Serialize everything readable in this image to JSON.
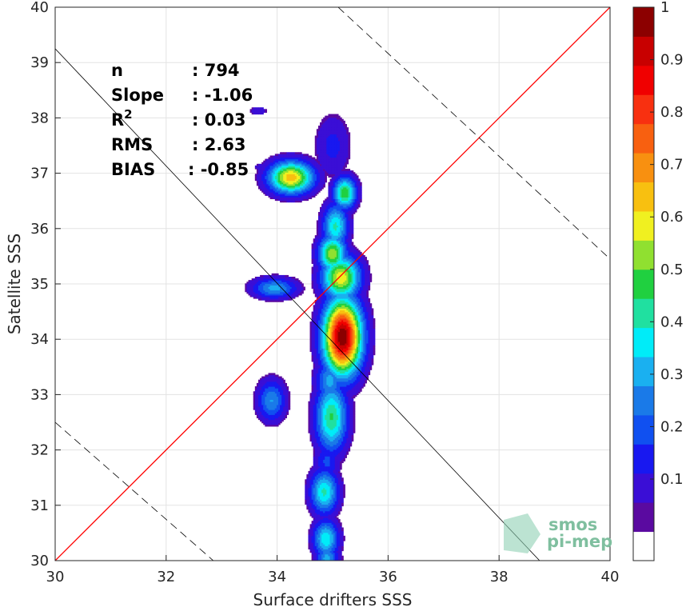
{
  "chart_data": {
    "type": "heatmap",
    "subtype": "filled-contour density",
    "xlabel": "Surface drifters SSS",
    "ylabel": "Satellite SSS",
    "xlim": [
      30,
      40
    ],
    "ylim": [
      30,
      40
    ],
    "xticks": [
      "30",
      "32",
      "34",
      "36",
      "38",
      "40"
    ],
    "yticks": [
      "30",
      "31",
      "32",
      "33",
      "34",
      "35",
      "36",
      "37",
      "38",
      "39",
      "40"
    ],
    "grid": true,
    "colorbar": {
      "range": [
        0,
        1
      ],
      "ticks": [
        "0.1",
        "0.2",
        "0.3",
        "0.4",
        "0.5",
        "0.6",
        "0.7",
        "0.8",
        "0.9",
        "1"
      ],
      "colors": [
        "#ffffff",
        "#5a0aa0",
        "#3a0ed6",
        "#1818f0",
        "#1050f0",
        "#1a7ae8",
        "#1ab0f0",
        "#00ecf8",
        "#20e0a0",
        "#20d040",
        "#90e030",
        "#f0f020",
        "#f8c010",
        "#f89010",
        "#f86010",
        "#f83010",
        "#f00000",
        "#c80000",
        "#8c0000"
      ]
    },
    "stats": [
      {
        "label": "n",
        "value": ": 794"
      },
      {
        "label": "Slope",
        "value": ": -1.06"
      },
      {
        "label": "R",
        "sup": "2",
        "value": ": 0.03"
      },
      {
        "label": "RMS",
        "value": ": 2.63"
      },
      {
        "label": "BIAS",
        "value": ": -0.85"
      }
    ],
    "lines": [
      {
        "name": "one-to-one",
        "color": "#ff0000",
        "style": "solid",
        "points": [
          [
            30,
            30
          ],
          [
            40,
            40
          ]
        ]
      },
      {
        "name": "regression",
        "color": "#000000",
        "style": "solid",
        "points": [
          [
            30,
            39.25
          ],
          [
            38.73,
            30
          ]
        ]
      },
      {
        "name": "upper-bound",
        "color": "#000000",
        "style": "dashed",
        "points": [
          [
            35.1,
            40
          ],
          [
            40,
            35.45
          ]
        ]
      },
      {
        "name": "lower-bound",
        "color": "#000000",
        "style": "dashed",
        "points": [
          [
            30,
            32.5
          ],
          [
            32.85,
            30
          ]
        ]
      }
    ],
    "density_blobs": [
      {
        "x": 34.25,
        "y": 36.93,
        "rx": 0.35,
        "ry": 0.25,
        "peak": 0.65
      },
      {
        "x": 33.95,
        "y": 34.93,
        "rx": 0.35,
        "ry": 0.16,
        "peak": 0.3
      },
      {
        "x": 33.9,
        "y": 32.9,
        "rx": 0.22,
        "ry": 0.32,
        "peak": 0.28
      },
      {
        "x": 33.65,
        "y": 38.13,
        "rx": 0.15,
        "ry": 0.07,
        "peak": 0.1
      },
      {
        "x": 33.7,
        "y": 37.12,
        "rx": 0.1,
        "ry": 0.05,
        "peak": 0.1
      },
      {
        "x": 35.18,
        "y": 34.05,
        "rx": 0.3,
        "ry": 0.6,
        "peak": 1.0
      },
      {
        "x": 35.15,
        "y": 35.12,
        "rx": 0.3,
        "ry": 0.35,
        "peak": 0.6
      },
      {
        "x": 35.0,
        "y": 35.55,
        "rx": 0.22,
        "ry": 0.3,
        "peak": 0.55
      },
      {
        "x": 35.05,
        "y": 36.05,
        "rx": 0.2,
        "ry": 0.35,
        "peak": 0.4
      },
      {
        "x": 35.22,
        "y": 36.65,
        "rx": 0.18,
        "ry": 0.25,
        "peak": 0.5
      },
      {
        "x": 35.0,
        "y": 37.5,
        "rx": 0.28,
        "ry": 0.5,
        "peak": 0.13
      },
      {
        "x": 34.98,
        "y": 32.6,
        "rx": 0.25,
        "ry": 0.55,
        "peak": 0.45
      },
      {
        "x": 34.95,
        "y": 33.25,
        "rx": 0.22,
        "ry": 0.35,
        "peak": 0.3
      },
      {
        "x": 34.85,
        "y": 31.25,
        "rx": 0.22,
        "ry": 0.35,
        "peak": 0.4
      },
      {
        "x": 34.9,
        "y": 31.8,
        "rx": 0.2,
        "ry": 0.3,
        "peak": 0.18
      },
      {
        "x": 34.88,
        "y": 30.4,
        "rx": 0.2,
        "ry": 0.3,
        "peak": 0.38
      },
      {
        "x": 34.9,
        "y": 30.05,
        "rx": 0.18,
        "ry": 0.2,
        "peak": 0.3
      }
    ]
  },
  "watermark": {
    "line1": "smos",
    "line2": "pi-mep"
  }
}
